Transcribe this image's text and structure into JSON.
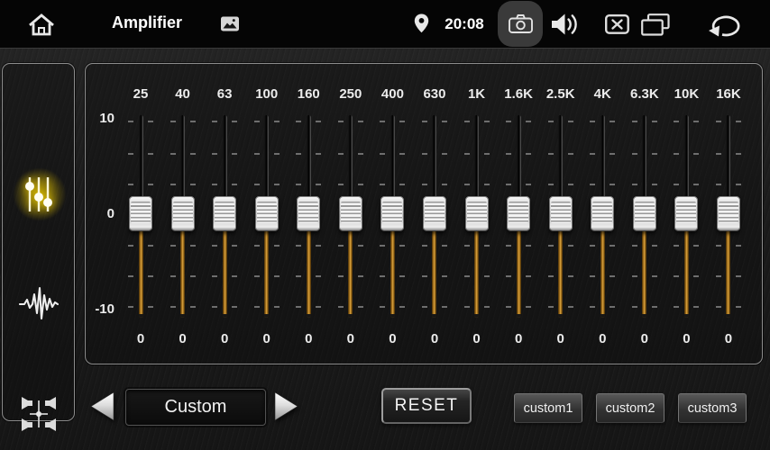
{
  "top_bar": {
    "title": "Amplifier",
    "time": "20:08",
    "icons": {
      "left": [
        "home-icon",
        "gallery-icon"
      ],
      "right": [
        "location-pin-icon",
        "camera-icon",
        "volume-icon",
        "close-window-icon",
        "recent-apps-icon",
        "back-arrow-icon"
      ],
      "highlighted": "camera-icon"
    }
  },
  "sidebar": {
    "items": [
      {
        "name": "equalizer",
        "icon": "eq-sliders-icon",
        "active": true
      },
      {
        "name": "sound-effect",
        "icon": "waveform-icon",
        "active": false
      },
      {
        "name": "balance-fader",
        "icon": "speaker-balance-icon",
        "active": false
      }
    ]
  },
  "equalizer": {
    "axis": {
      "max": "10",
      "mid": "0",
      "min": "-10"
    },
    "bands": [
      {
        "freq": "25",
        "value": "0"
      },
      {
        "freq": "40",
        "value": "0"
      },
      {
        "freq": "63",
        "value": "0"
      },
      {
        "freq": "100",
        "value": "0"
      },
      {
        "freq": "160",
        "value": "0"
      },
      {
        "freq": "250",
        "value": "0"
      },
      {
        "freq": "400",
        "value": "0"
      },
      {
        "freq": "630",
        "value": "0"
      },
      {
        "freq": "1K",
        "value": "0"
      },
      {
        "freq": "1.6K",
        "value": "0"
      },
      {
        "freq": "2.5K",
        "value": "0"
      },
      {
        "freq": "4K",
        "value": "0"
      },
      {
        "freq": "6.3K",
        "value": "0"
      },
      {
        "freq": "10K",
        "value": "0"
      },
      {
        "freq": "16K",
        "value": "0"
      }
    ]
  },
  "footer": {
    "preset": "Custom",
    "reset_label": "RESET",
    "custom_presets": [
      "custom1",
      "custom2",
      "custom3"
    ]
  },
  "colors": {
    "accent_yellow": "#f0cd00",
    "slider_orange": "#e0a83f",
    "panel_border": "#8c8c8c",
    "topbar_bg": "#050505"
  }
}
